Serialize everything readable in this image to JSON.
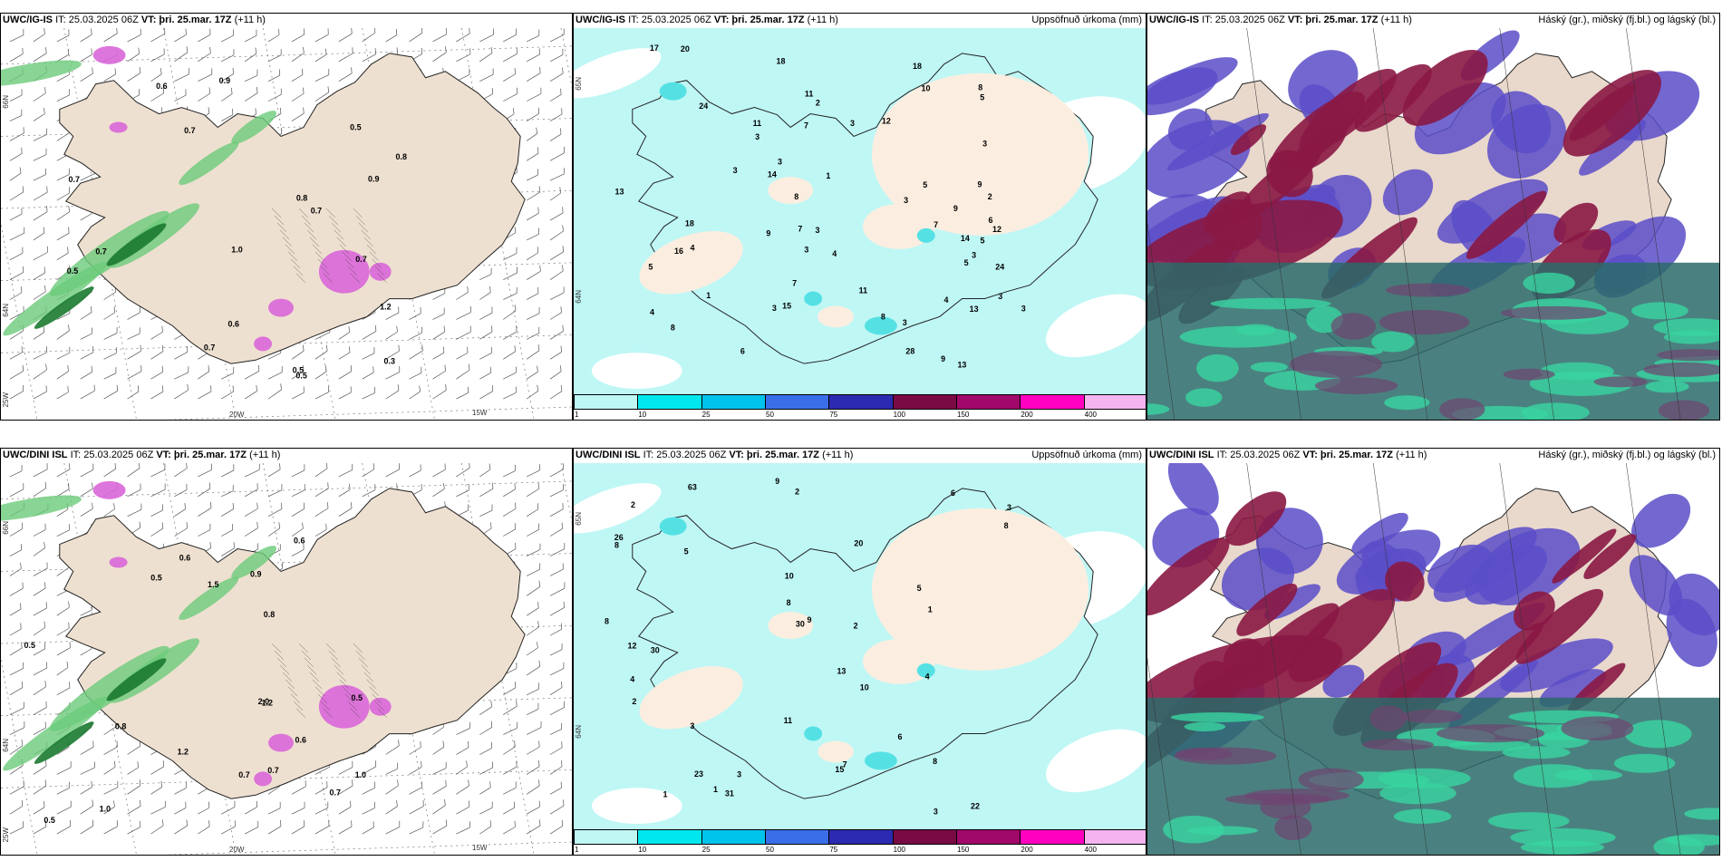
{
  "panels": [
    {
      "left": "UWC/IG-IS",
      "it": "IT: 25.03.2025 06Z",
      "vt_label": "VT:",
      "vt": "þri. 25.mar. 17Z",
      "offset": "(+11 h)",
      "right": ""
    },
    {
      "left": "UWC/IG-IS",
      "it": "IT: 25.03.2025 06Z",
      "vt_label": "VT:",
      "vt": "þri. 25.mar. 17Z",
      "offset": "(+11 h)",
      "right": "Uppsöfnuð úrkoma (mm)"
    },
    {
      "left": "UWC/IG-IS",
      "it": "IT: 25.03.2025 06Z",
      "vt_label": "VT:",
      "vt": "þri. 25.mar. 17Z",
      "offset": "(+11 h)",
      "right": "Háský (gr.), miðský (fj.bl.) og lágský (bl.)"
    },
    {
      "left": "UWC/DINI ISL",
      "it": "IT: 25.03.2025 06Z",
      "vt_label": "VT:",
      "vt": "þri. 25.mar. 17Z",
      "offset": "(+11 h)",
      "right": ""
    },
    {
      "left": "UWC/DINI ISL",
      "it": "IT: 25.03.2025 06Z",
      "vt_label": "VT:",
      "vt": "þri. 25.mar. 17Z",
      "offset": "(+11 h)",
      "right": "Uppsöfnuð úrkoma (mm)"
    },
    {
      "left": "UWC/DINI ISL",
      "it": "IT: 25.03.2025 06Z",
      "vt_label": "VT:",
      "vt": "þri. 25.mar. 17Z",
      "offset": "(+11 h)",
      "right": "Háský (gr.), miðský (fj.bl.) og lágský (bl.)"
    }
  ],
  "coords": {
    "lat66": "66N",
    "lat64": "64N",
    "lon25": "25W",
    "lon20": "20W",
    "lon15": "15W"
  },
  "colorbar": {
    "labels": [
      "1",
      "10",
      "25",
      "50",
      "75",
      "100",
      "150",
      "200",
      "400"
    ],
    "colors": [
      "#bff7f5",
      "#00e8ee",
      "#00c3ec",
      "#3a6ee8",
      "#2c2ab0",
      "#7a0a44",
      "#a0086a",
      "#ff00c0",
      "#f4b4f0"
    ]
  },
  "precip_top": [
    "1",
    "2",
    "9",
    "11",
    "14",
    "13",
    "24",
    "18",
    "17",
    "18",
    "12",
    "7",
    "7",
    "4",
    "1",
    "3",
    "5",
    "9",
    "5",
    "6",
    "8",
    "4",
    "10",
    "4",
    "5",
    "3",
    "3",
    "5",
    "6",
    "3",
    "9",
    "3",
    "5",
    "15",
    "13",
    "12",
    "14",
    "18",
    "20",
    "11",
    "7",
    "8",
    "8",
    "7",
    "11",
    "28",
    "9",
    "24",
    "3",
    "16",
    "3",
    "4",
    "13",
    "3",
    "2",
    "8",
    "3",
    "3",
    "3",
    "3",
    "3"
  ],
  "precip_bottom": [
    "8",
    "2",
    "5",
    "3",
    "26",
    "22",
    "30",
    "20",
    "10",
    "6",
    "9",
    "4",
    "9",
    "8",
    "5",
    "3",
    "7",
    "12",
    "13",
    "11",
    "6",
    "8",
    "8",
    "8",
    "23",
    "30",
    "10",
    "63",
    "31",
    "15",
    "4",
    "3",
    "2",
    "1",
    "1",
    "2",
    "1",
    "2",
    "3"
  ],
  "wind_top": [
    "1.2",
    "0.7",
    "0.5",
    "0.9",
    "0.7",
    "0.5",
    "0.8",
    "0.7",
    "1.0",
    "0.7",
    "0.9",
    "0.8",
    "0.7",
    "0.5",
    "0.6",
    "0.7",
    "0.5",
    "0.6",
    "0.3"
  ],
  "wind_bottom": [
    "1.2",
    "0.6",
    "1.0",
    "0.8",
    "0.5",
    "0.6",
    "0.5",
    "0.9",
    "1.0",
    "0.7",
    "0.5",
    "0.5",
    "0.6",
    "0.8",
    "1.5",
    "1.2",
    "0.7",
    "2.0",
    "0.7"
  ]
}
